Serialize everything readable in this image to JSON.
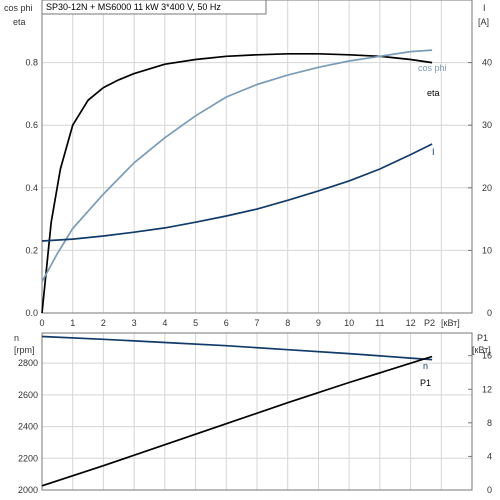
{
  "colors": {
    "black": "#000000",
    "navy": "#123b6a",
    "steel_blue": "#7b9cb8",
    "grid": "#d6d6d6",
    "frame": "#777777"
  },
  "header": {
    "title": "SP30-12N + MS6000   11 kW   3*400 V, 50 Hz"
  },
  "chart_data": [
    {
      "type": "line",
      "title": "SP30-12N + MS6000   11 kW   3*400 V, 50 Hz",
      "x_label": "P2",
      "x_unit": "[кВт]",
      "xlim": [
        0,
        14
      ],
      "x_ticks": [
        0,
        1,
        2,
        3,
        4,
        5,
        6,
        7,
        8,
        9,
        10,
        11,
        12
      ],
      "y_left_label_line1": "cos phi",
      "y_left_label_line2": "eta",
      "ylim_left": [
        0,
        1.0
      ],
      "y_left_ticks": [
        "0.0",
        "0.2",
        "0.4",
        "0.6",
        "0.8"
      ],
      "y_right_label_line1": "I",
      "y_right_label_line2": "[A]",
      "ylim_right": [
        0,
        50
      ],
      "y_right_ticks": [
        "0",
        "10",
        "20",
        "30",
        "40"
      ],
      "grid": true,
      "series": [
        {
          "name": "eta",
          "axis": "left",
          "color": "#000000",
          "x": [
            0,
            0.3,
            0.6,
            1,
            1.5,
            2,
            2.5,
            3,
            4,
            5,
            6,
            7,
            8,
            9,
            10,
            11,
            12,
            12.7
          ],
          "y": [
            0,
            0.29,
            0.46,
            0.6,
            0.68,
            0.72,
            0.745,
            0.765,
            0.795,
            0.81,
            0.82,
            0.825,
            0.828,
            0.828,
            0.825,
            0.82,
            0.81,
            0.8
          ]
        },
        {
          "name": "cos phi",
          "axis": "left",
          "color": "#7b9cb8",
          "x": [
            0,
            0.5,
            1,
            2,
            3,
            4,
            5,
            6,
            7,
            8,
            9,
            10,
            11,
            12,
            12.7
          ],
          "y": [
            0.1,
            0.19,
            0.27,
            0.38,
            0.48,
            0.56,
            0.63,
            0.69,
            0.73,
            0.76,
            0.785,
            0.805,
            0.82,
            0.835,
            0.84
          ]
        },
        {
          "name": "I",
          "axis": "right",
          "color": "#123b6a",
          "x": [
            0,
            1,
            2,
            3,
            4,
            5,
            6,
            7,
            8,
            9,
            10,
            11,
            12,
            12.7
          ],
          "y": [
            11.5,
            11.8,
            12.3,
            12.9,
            13.6,
            14.5,
            15.5,
            16.6,
            18.0,
            19.5,
            21.1,
            23.0,
            25.3,
            27.0
          ]
        }
      ]
    },
    {
      "type": "line",
      "x_label": "P2",
      "xlim": [
        0,
        14
      ],
      "y_left_label_line1": "n",
      "y_left_label_line2": "[rpm]",
      "ylim_left": [
        2000,
        2990
      ],
      "y_left_ticks": [
        "2000",
        "2200",
        "2400",
        "2600",
        "2800"
      ],
      "y_right_label_line1": "P1",
      "y_right_label_line2": "[кВт]",
      "ylim_right": [
        0,
        18.7
      ],
      "y_right_ticks": [
        "0",
        "4",
        "8",
        "12",
        "16"
      ],
      "grid": true,
      "series": [
        {
          "name": "n",
          "axis": "left",
          "color": "#123b6a",
          "x": [
            0,
            2,
            4,
            6,
            8,
            10,
            12,
            12.7
          ],
          "y": [
            2968,
            2950,
            2930,
            2910,
            2885,
            2860,
            2832,
            2822
          ]
        },
        {
          "name": "P1",
          "axis": "right",
          "color": "#000000",
          "x": [
            0,
            2,
            4,
            6,
            8,
            10,
            12,
            12.7
          ],
          "y": [
            0.5,
            2.9,
            5.4,
            7.9,
            10.4,
            12.8,
            15.1,
            15.9
          ]
        }
      ]
    }
  ]
}
